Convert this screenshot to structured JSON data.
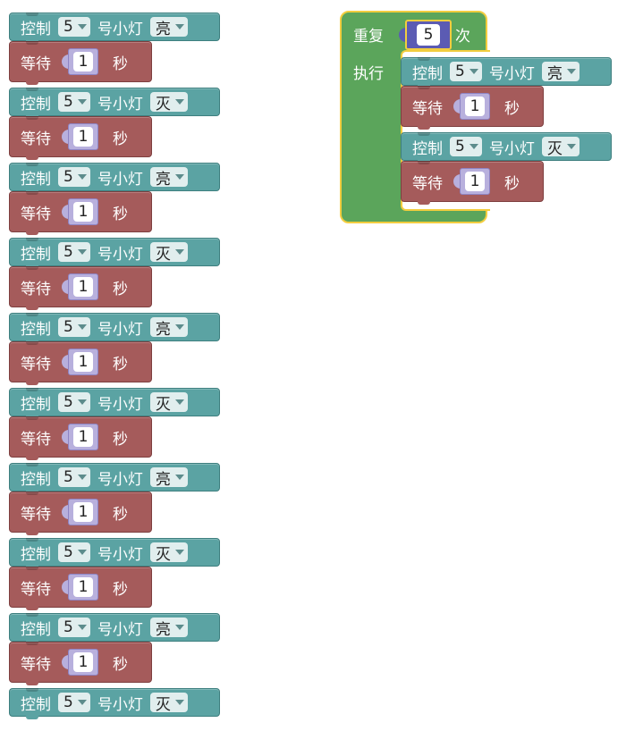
{
  "stack_left": [
    {
      "type": "control",
      "label_a": "控制",
      "pin": "5",
      "label_b": "号小灯",
      "state": "亮"
    },
    {
      "type": "wait",
      "label_a": "等待",
      "seconds": "1",
      "label_b": "秒"
    },
    {
      "type": "control",
      "label_a": "控制",
      "pin": "5",
      "label_b": "号小灯",
      "state": "灭"
    },
    {
      "type": "wait",
      "label_a": "等待",
      "seconds": "1",
      "label_b": "秒"
    },
    {
      "type": "control",
      "label_a": "控制",
      "pin": "5",
      "label_b": "号小灯",
      "state": "亮"
    },
    {
      "type": "wait",
      "label_a": "等待",
      "seconds": "1",
      "label_b": "秒"
    },
    {
      "type": "control",
      "label_a": "控制",
      "pin": "5",
      "label_b": "号小灯",
      "state": "灭"
    },
    {
      "type": "wait",
      "label_a": "等待",
      "seconds": "1",
      "label_b": "秒"
    },
    {
      "type": "control",
      "label_a": "控制",
      "pin": "5",
      "label_b": "号小灯",
      "state": "亮"
    },
    {
      "type": "wait",
      "label_a": "等待",
      "seconds": "1",
      "label_b": "秒"
    },
    {
      "type": "control",
      "label_a": "控制",
      "pin": "5",
      "label_b": "号小灯",
      "state": "灭"
    },
    {
      "type": "wait",
      "label_a": "等待",
      "seconds": "1",
      "label_b": "秒"
    },
    {
      "type": "control",
      "label_a": "控制",
      "pin": "5",
      "label_b": "号小灯",
      "state": "亮"
    },
    {
      "type": "wait",
      "label_a": "等待",
      "seconds": "1",
      "label_b": "秒"
    },
    {
      "type": "control",
      "label_a": "控制",
      "pin": "5",
      "label_b": "号小灯",
      "state": "灭"
    },
    {
      "type": "wait",
      "label_a": "等待",
      "seconds": "1",
      "label_b": "秒"
    },
    {
      "type": "control",
      "label_a": "控制",
      "pin": "5",
      "label_b": "号小灯",
      "state": "亮"
    },
    {
      "type": "wait",
      "label_a": "等待",
      "seconds": "1",
      "label_b": "秒"
    },
    {
      "type": "control",
      "label_a": "控制",
      "pin": "5",
      "label_b": "号小灯",
      "state": "灭"
    }
  ],
  "repeat": {
    "label_repeat": "重复",
    "count": "5",
    "label_times": "次",
    "label_do": "执行",
    "body": [
      {
        "type": "control",
        "label_a": "控制",
        "pin": "5",
        "label_b": "号小灯",
        "state": "亮"
      },
      {
        "type": "wait",
        "label_a": "等待",
        "seconds": "1",
        "label_b": "秒"
      },
      {
        "type": "control",
        "label_a": "控制",
        "pin": "5",
        "label_b": "号小灯",
        "state": "灭"
      },
      {
        "type": "wait",
        "label_a": "等待",
        "seconds": "1",
        "label_b": "秒"
      }
    ]
  },
  "colors": {
    "control": "#5ba3a3",
    "wait": "#a55b5b",
    "repeat": "#5ba55b",
    "number": "#b8b0dd",
    "highlight": "#f2cd3f"
  }
}
